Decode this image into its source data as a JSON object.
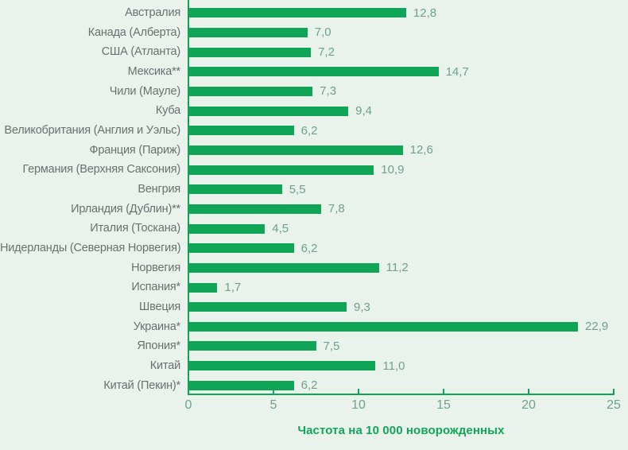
{
  "chart_data": {
    "type": "bar",
    "orientation": "horizontal",
    "title": "",
    "xlabel": "Частота на 10 000 новорожденных",
    "ylabel": "",
    "xlim": [
      0,
      25
    ],
    "xticks": [
      0,
      5,
      10,
      15,
      20,
      25
    ],
    "xtick_labels": [
      "0",
      "5",
      "10",
      "15",
      "20",
      "25"
    ],
    "grid": false,
    "legend": null,
    "categories": [
      "Австралия",
      "Канада (Алберта)",
      "США (Атланта)",
      "Мексика**",
      "Чили (Мауле)",
      "Куба",
      "Великобритания (Англия и Уэльс)",
      "Франция (Париж)",
      "Германия (Верхняя Саксония)",
      "Венгрия",
      "Ирландия (Дублин)**",
      "Италия (Тоскана)",
      "Нидерланды (Северная Норвегия)",
      "Норвегия",
      "Испания*",
      "Швеция",
      "Украина*",
      "Япония*",
      "Китай",
      "Китай (Пекин)*"
    ],
    "values": [
      12.8,
      7.0,
      7.2,
      14.7,
      7.3,
      9.4,
      6.2,
      12.6,
      10.9,
      5.5,
      7.8,
      4.5,
      6.2,
      11.2,
      1.7,
      9.3,
      22.9,
      7.5,
      11.0,
      6.2
    ],
    "value_labels": [
      "12,8",
      "7,0",
      "7,2",
      "14,7",
      "7,3",
      "9,4",
      "6,2",
      "12,6",
      "10,9",
      "5,5",
      "7,8",
      "4,5",
      "6,2",
      "11,2",
      "1,7",
      "9,3",
      "22,9",
      "7,5",
      "11,0",
      "6,2"
    ]
  },
  "colors": {
    "background": "#e9f3ec",
    "bar": "#0fa456",
    "category_label": "#6d6e71",
    "value_label": "#6fa289",
    "tick_label": "#6fa289",
    "axis": "#0fa456",
    "axis_title": "#12a45a"
  }
}
